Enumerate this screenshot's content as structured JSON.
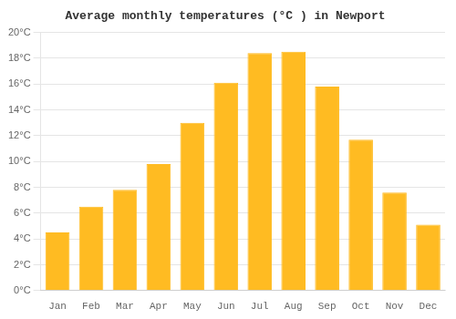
{
  "chart_data": {
    "type": "bar",
    "title": "Average monthly temperatures (°C ) in Newport",
    "categories": [
      "Jan",
      "Feb",
      "Mar",
      "Apr",
      "May",
      "Jun",
      "Jul",
      "Aug",
      "Sep",
      "Oct",
      "Nov",
      "Dec"
    ],
    "values": [
      4.5,
      6.5,
      7.8,
      9.8,
      13.0,
      16.1,
      18.4,
      18.5,
      15.8,
      11.7,
      7.6,
      5.1
    ],
    "color": "#FFBB22",
    "ylim": [
      0,
      20
    ],
    "yticks": [
      {
        "value": 0,
        "label": "0°C"
      },
      {
        "value": 2,
        "label": "2°C"
      },
      {
        "value": 4,
        "label": "4°C"
      },
      {
        "value": 6,
        "label": "6°C"
      },
      {
        "value": 8,
        "label": "8°C"
      },
      {
        "value": 10,
        "label": "10°C"
      },
      {
        "value": 12,
        "label": "12°C"
      },
      {
        "value": 14,
        "label": "14°C"
      },
      {
        "value": 16,
        "label": "16°C"
      },
      {
        "value": 18,
        "label": "18°C"
      },
      {
        "value": 20,
        "label": "20°C"
      }
    ],
    "grid": true
  }
}
